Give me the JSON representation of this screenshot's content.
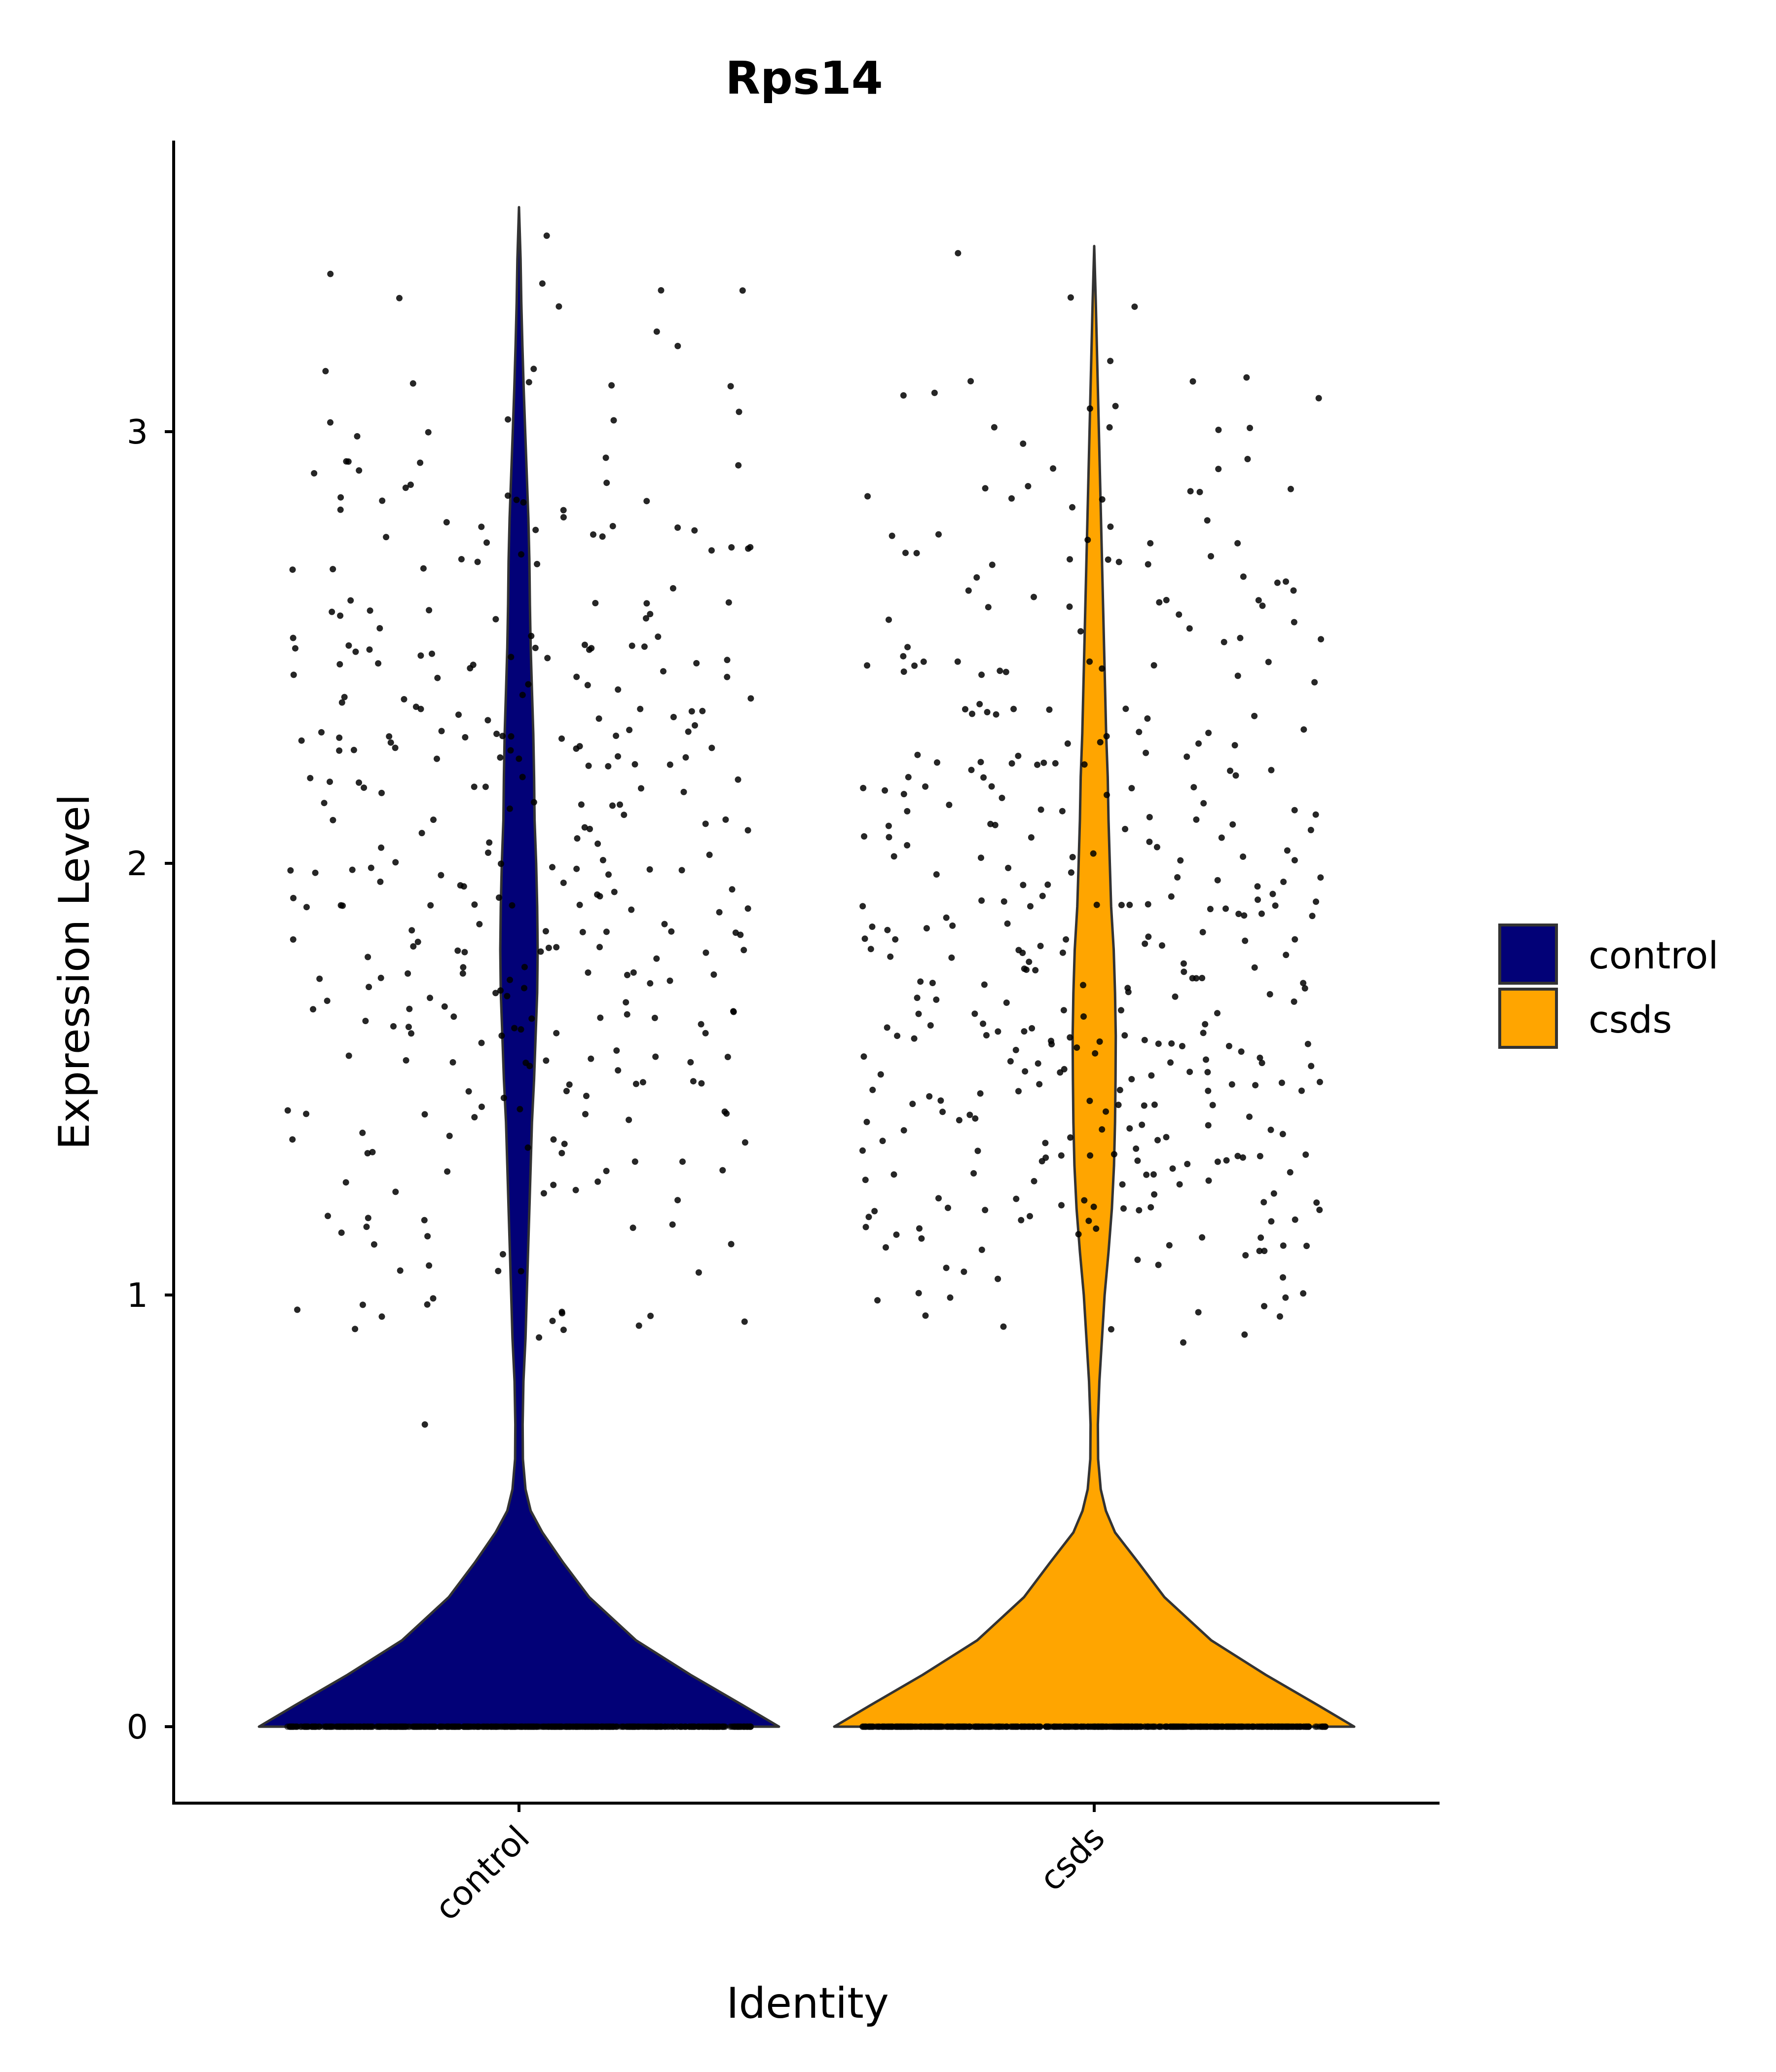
{
  "colors": {
    "control": "#020177",
    "csds": "#FFA500",
    "outline": "#333333",
    "points": "#000000",
    "axis": "#000000"
  },
  "chart_data": {
    "type": "violin",
    "title": "Rps14",
    "xlabel": "Identity",
    "ylabel": "Expression Level",
    "categories": [
      "control",
      "csds"
    ],
    "ylim": [
      -0.17,
      3.6
    ],
    "yticks": [
      0,
      1,
      2,
      3
    ],
    "grid": false,
    "legend": {
      "position": "right",
      "entries": [
        "control",
        "csds"
      ]
    },
    "series": [
      {
        "name": "control",
        "max_value": 3.52,
        "density_profile": [
          [
            0,
            1.0
          ],
          [
            0.05,
            0.86
          ],
          [
            0.12,
            0.66
          ],
          [
            0.2,
            0.45
          ],
          [
            0.3,
            0.27
          ],
          [
            0.38,
            0.17
          ],
          [
            0.45,
            0.09
          ],
          [
            0.5,
            0.045
          ],
          [
            0.55,
            0.025
          ],
          [
            0.62,
            0.015
          ],
          [
            0.7,
            0.014
          ],
          [
            0.8,
            0.017
          ],
          [
            0.9,
            0.025
          ],
          [
            1.0,
            0.03
          ],
          [
            1.1,
            0.035
          ],
          [
            1.2,
            0.04
          ],
          [
            1.3,
            0.045
          ],
          [
            1.4,
            0.05
          ],
          [
            1.5,
            0.058
          ],
          [
            1.6,
            0.064
          ],
          [
            1.7,
            0.07
          ],
          [
            1.8,
            0.072
          ],
          [
            1.9,
            0.07
          ],
          [
            2.0,
            0.066
          ],
          [
            2.1,
            0.06
          ],
          [
            2.2,
            0.058
          ],
          [
            2.3,
            0.055
          ],
          [
            2.4,
            0.05
          ],
          [
            2.5,
            0.045
          ],
          [
            2.6,
            0.042
          ],
          [
            2.7,
            0.04
          ],
          [
            2.8,
            0.036
          ],
          [
            2.9,
            0.03
          ],
          [
            3.0,
            0.024
          ],
          [
            3.1,
            0.018
          ],
          [
            3.2,
            0.013
          ],
          [
            3.3,
            0.009
          ],
          [
            3.4,
            0.006
          ],
          [
            3.52,
            0.0
          ]
        ],
        "n_nonzero_points": 360,
        "n_zero_points": 600
      },
      {
        "name": "csds",
        "max_value": 3.43,
        "density_profile": [
          [
            0,
            1.0
          ],
          [
            0.05,
            0.86
          ],
          [
            0.12,
            0.66
          ],
          [
            0.2,
            0.45
          ],
          [
            0.3,
            0.27
          ],
          [
            0.38,
            0.17
          ],
          [
            0.45,
            0.08
          ],
          [
            0.5,
            0.045
          ],
          [
            0.55,
            0.025
          ],
          [
            0.62,
            0.015
          ],
          [
            0.7,
            0.014
          ],
          [
            0.8,
            0.02
          ],
          [
            0.9,
            0.03
          ],
          [
            1.0,
            0.04
          ],
          [
            1.1,
            0.055
          ],
          [
            1.2,
            0.068
          ],
          [
            1.3,
            0.076
          ],
          [
            1.4,
            0.08
          ],
          [
            1.5,
            0.082
          ],
          [
            1.6,
            0.083
          ],
          [
            1.7,
            0.08
          ],
          [
            1.8,
            0.075
          ],
          [
            1.9,
            0.065
          ],
          [
            2.0,
            0.06
          ],
          [
            2.1,
            0.055
          ],
          [
            2.2,
            0.052
          ],
          [
            2.3,
            0.046
          ],
          [
            2.4,
            0.042
          ],
          [
            2.5,
            0.038
          ],
          [
            2.6,
            0.034
          ],
          [
            2.7,
            0.03
          ],
          [
            2.8,
            0.026
          ],
          [
            2.9,
            0.022
          ],
          [
            3.0,
            0.018
          ],
          [
            3.1,
            0.014
          ],
          [
            3.2,
            0.01
          ],
          [
            3.3,
            0.006
          ],
          [
            3.43,
            0.0
          ]
        ],
        "n_nonzero_points": 400,
        "n_zero_points": 600
      }
    ]
  }
}
